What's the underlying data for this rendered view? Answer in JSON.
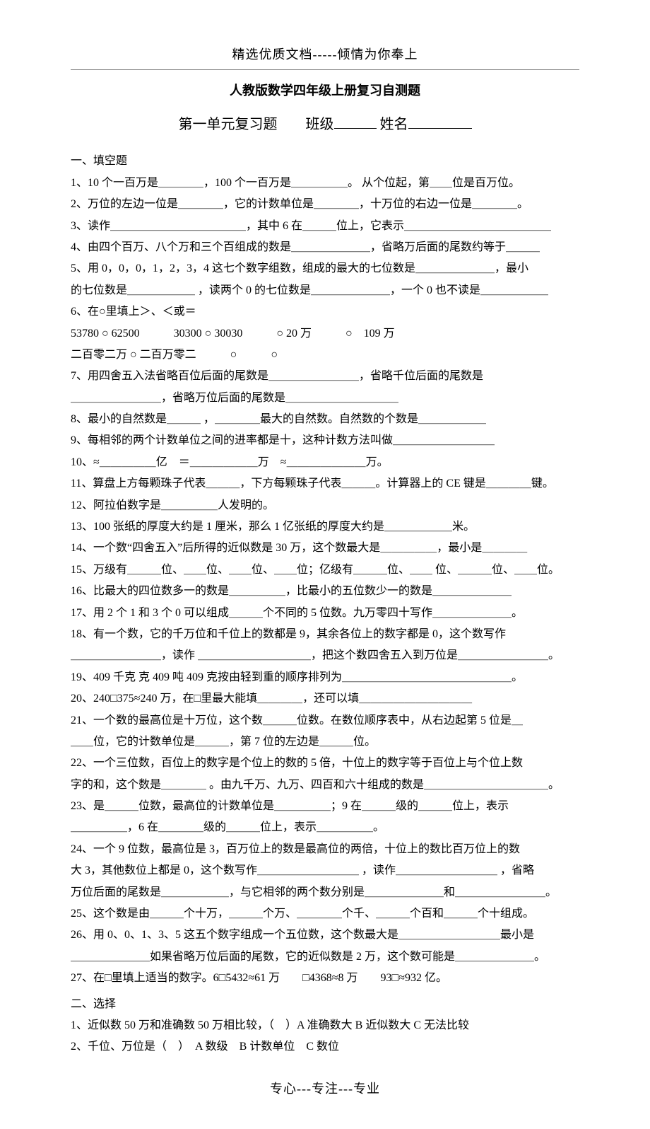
{
  "header": "精选优质文档-----倾情为你奉上",
  "title_bold": "人教版数学四年级上册复习自测题",
  "subtitle_prefix": "第一单元复习题　　班级",
  "subtitle_mid": "姓名",
  "section1": "一、填空题",
  "q1": "1、10 个一百万是＿＿＿＿，100 个一百万是＿＿＿＿＿。 从个位起，第＿＿位是百万位。",
  "q2": "2、万位的左边一位是＿＿＿＿，它的计数单位是＿＿＿＿，十万位的右边一位是＿＿＿＿。",
  "q3": "3、读作＿＿＿＿＿＿＿＿＿＿＿＿，其中 6 在＿＿＿位上，它表示＿＿＿＿＿＿＿＿＿＿＿＿＿",
  "q4": "4、由四个百万、八个万和三个百组成的数是＿＿＿＿＿＿＿，省略万后面的尾数约等于＿＿＿",
  "q5a": "5、用 0，0，0，1，2，3，4 这七个数字组数，组成的最大的七位数是＿＿＿＿＿＿＿，最小",
  "q5b": "的七位数是＿＿＿＿＿＿ ，读两个 0 的七位数是＿＿＿＿＿＿＿，一个 0 也不读是＿＿＿＿＿＿",
  "q6a": "6、在○里填上＞、＜或＝",
  "q6b": "53780 ○ 62500　　　30300 ○ 30030　　　○ 20 万　　　○　109 万",
  "q6c": "二百零二万 ○ 二百万零二　　　○　　　○",
  "q7a": "7、用四舍五入法省略百位后面的尾数是＿＿＿＿＿＿＿＿，省略千位后面的尾数是",
  "q7b": "＿＿＿＿＿＿＿＿，省略万位后面的尾数是＿＿＿＿＿＿＿＿＿＿",
  "q8": "8、最小的自然数是＿＿＿ ，＿＿＿＿最大的自然数。自然数的个数是＿＿＿＿＿＿",
  "q9": "9、每相邻的两个计数单位之间的进率都是十，这种计数方法叫做＿＿＿＿＿＿＿＿＿",
  "q10": "10、≈＿＿＿＿＿亿　＝＿＿＿＿＿＿万　≈＿＿＿＿＿＿＿万。",
  "q11": "11、算盘上方每颗珠子代表＿＿＿，下方每颗珠子代表＿＿＿。计算器上的 CE 键是＿＿＿＿键。",
  "q12": "12、阿拉伯数字是＿＿＿＿＿人发明的。",
  "q13": "13、100 张纸的厚度大约是 1 厘米，那么 1 亿张纸的厚度大约是＿＿＿＿＿＿米。",
  "q14": "14、一个数“四舍五入”后所得的近似数是 30 万，这个数最大是＿＿＿＿＿，最小是＿＿＿＿",
  "q15": "15、万级有＿＿＿位、＿＿位、＿＿位、＿＿位；亿级有＿＿＿位、＿＿ 位、＿＿＿位、＿＿位。",
  "q16": "16、比最大的四位数多一的数是＿＿＿＿＿，比最小的五位数少一的数是＿＿＿＿＿＿＿",
  "q17": "17、用 2 个 1 和 3 个 0 可以组成＿＿＿个不同的 5 位数。九万零四十写作＿＿＿＿＿＿＿。",
  "q18a": "18、有一个数，它的千万位和千位上的数都是 9，其余各位上的数字都是 0，这个数写作",
  "q18b": "＿＿＿＿＿＿＿＿，读作 ＿＿＿＿＿＿＿＿＿＿，把这个数四舍五入到万位是＿＿＿＿＿＿＿＿。",
  "q19": "19、409 千克 克 409 吨 409 克按由轻到重的顺序排列为＿＿＿＿＿＿＿＿＿＿＿＿＿＿＿。",
  "q20": "20、240□375≈240 万，在□里最大能填＿＿＿＿，还可以填＿＿＿＿＿＿＿＿＿＿",
  "q21a": "21、一个数的最高位是十万位，这个数＿＿＿位数。在数位顺序表中，从右边起第 5 位是＿",
  "q21b": "＿＿位，它的计数单位是＿＿＿，第 7 位的左边是＿＿＿位。",
  "q22a": "22、一个三位数，百位上的数字是个位上的数的 5 倍，十位上的数字等于百位上与个位上数",
  "q22b": "字的和，这个数是＿＿＿＿ 。由九千万、九万、四百和六十组成的数是＿＿＿＿＿＿＿＿＿＿＿。",
  "q23a": "23、是＿＿＿位数，最高位的计数单位是＿＿＿＿＿；9 在＿＿＿级的＿＿＿位上，表示",
  "q23b": "＿＿＿＿＿，6 在＿＿＿＿级的＿＿＿位上，表示＿＿＿＿＿。",
  "q24a": "24、一个 9 位数，最高位是 3，百万位上的数是最高位的两倍，十位上的数比百万位上的数",
  "q24b": "大 3，其他数位上都是 0，这个数写作＿＿＿＿＿＿＿＿＿ ，读作＿＿＿＿＿＿＿＿＿ ，省略",
  "q24c": "万位后面的尾数是＿＿＿＿＿＿，与它相邻的两个数分别是＿＿＿＿＿＿＿和＿＿＿＿＿＿＿＿。",
  "q25": "25、这个数是由＿＿＿个十万，＿＿＿个万、＿＿＿＿个千、＿＿＿个百和＿＿＿个十组成。",
  "q26a": "26、用 0、0、1、3、5 这五个数字组成一个五位数，这个数最大是＿＿＿＿＿＿＿＿＿最小是",
  "q26b": "＿＿＿＿＿＿＿如果省略万位后面的尾数，它的近似数是 2 万，这个数可能是＿＿＿＿＿＿＿。",
  "q27": "27、在□里填上适当的数字。6□5432≈61 万　　□4368≈8 万　　93□≈932 亿。",
  "section2": "二、选择",
  "c1": "1、近似数 50 万和准确数 50 万相比较，（　）A 准确数大  B 近似数大  C 无法比较",
  "c2": "2、千位、万位是（　）　A 数级　B 计数单位　C 数位",
  "footer": "专心---专注---专业"
}
